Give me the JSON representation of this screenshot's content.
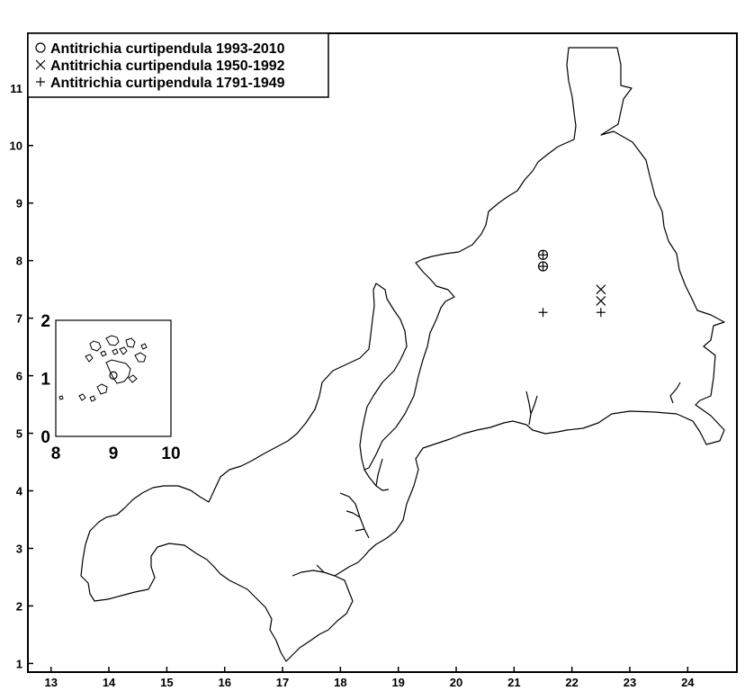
{
  "chart_data": [
    {
      "type": "scatter",
      "title": "",
      "xlabel": "",
      "ylabel": "",
      "xlim": [
        12.6,
        24.85
      ],
      "ylim": [
        0.85,
        11.95
      ],
      "x_ticks": [
        13,
        14,
        15,
        16,
        17,
        18,
        19,
        20,
        21,
        22,
        23,
        24
      ],
      "y_ticks": [
        1,
        2,
        3,
        4,
        5,
        6,
        7,
        8,
        9,
        10,
        11
      ],
      "x_tick_labels": [
        "13",
        "14",
        "15",
        "16",
        "17",
        "18",
        "19",
        "20",
        "21",
        "22",
        "23",
        "24"
      ],
      "y_tick_labels": [
        "1",
        "2",
        "3",
        "4",
        "5",
        "6",
        "7",
        "8",
        "9",
        "10",
        "11"
      ],
      "grid": false,
      "legend_position": "top-left",
      "series": [
        {
          "name": "Antitrichia curtipendula 1993-2010",
          "marker": "circle-cross",
          "points": [
            [
              21.5,
              8.1
            ],
            [
              21.5,
              7.9
            ]
          ]
        },
        {
          "name": "Antitrichia curtipendula 1950-1992",
          "marker": "x",
          "points": [
            [
              22.5,
              7.5
            ],
            [
              22.5,
              7.3
            ]
          ]
        },
        {
          "name": "Antitrichia curtipendula 1791-1949",
          "marker": "plus",
          "points": [
            [
              21.5,
              7.1
            ],
            [
              22.5,
              7.1
            ]
          ]
        }
      ]
    },
    {
      "type": "scatter",
      "title": "",
      "xlim": [
        8,
        10
      ],
      "ylim": [
        0,
        2
      ],
      "x_tick_labels": [
        "8",
        "9",
        "10"
      ],
      "y_tick_labels": [
        "0",
        "1",
        "2"
      ],
      "series": [
        {
          "name": "Antitrichia curtipendula 1993-2010",
          "marker": "circle",
          "points": [
            [
              9.0,
              1.05
            ]
          ]
        }
      ]
    }
  ],
  "colors": {
    "ink": "#000000",
    "background": "#ffffff"
  }
}
